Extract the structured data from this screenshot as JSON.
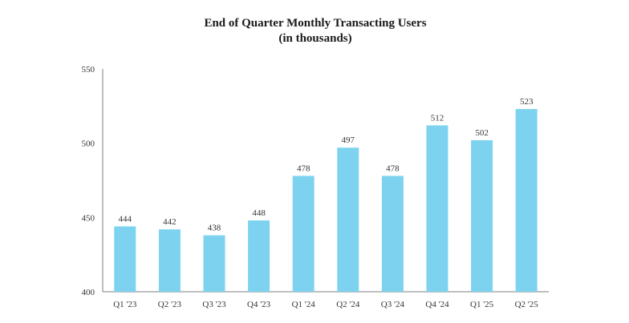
{
  "chart_data": {
    "type": "bar",
    "title": "End of Quarter Monthly Transacting Users",
    "subtitle": "(in thousands)",
    "xlabel": "",
    "ylabel": "",
    "categories": [
      "Q1 '23",
      "Q2 '23",
      "Q3 '23",
      "Q4 '23",
      "Q1 '24",
      "Q2 '24",
      "Q3 '24",
      "Q4 '24",
      "Q1 '25",
      "Q2 '25"
    ],
    "values": [
      444,
      442,
      438,
      448,
      478,
      497,
      478,
      512,
      502,
      523
    ],
    "ylim": [
      400,
      550
    ],
    "yticks": [
      400,
      450,
      500,
      550
    ],
    "grid": false,
    "legend": "none",
    "bar_color": "#7dd3ef"
  }
}
